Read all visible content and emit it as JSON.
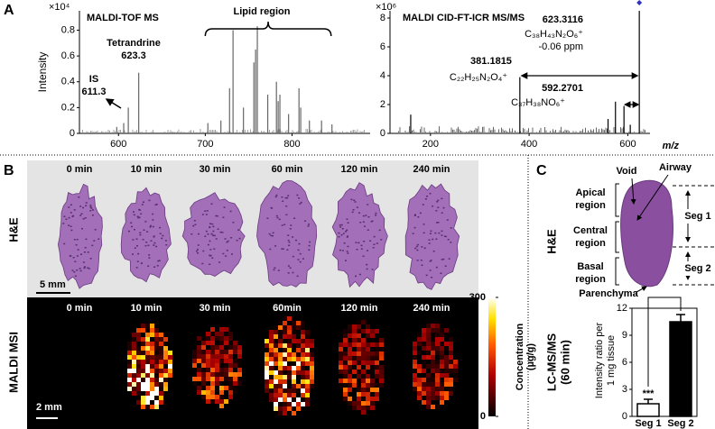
{
  "panel_a": {
    "label": "A",
    "tof": {
      "title": "MALDI-TOF MS",
      "y_label": "Intensity",
      "y_multiplier": "×10⁴",
      "xlim": [
        555,
        890
      ],
      "ylim": [
        0,
        0.95
      ],
      "xticks": [
        600,
        700,
        800
      ],
      "yticks": [
        0,
        0.2,
        0.4,
        0.6,
        0.8
      ],
      "color": "#666666",
      "peaks": {
        "x": [
          598,
          606,
          611.3,
          623.3,
          703,
          718,
          728,
          732,
          744,
          756,
          758,
          760,
          772,
          782,
          784,
          786,
          796,
          808,
          810,
          820,
          834,
          846
        ],
        "y": [
          0.05,
          0.08,
          0.2,
          0.47,
          0.08,
          0.1,
          0.35,
          0.8,
          0.2,
          0.55,
          0.65,
          0.83,
          0.3,
          0.4,
          0.25,
          0.3,
          0.15,
          0.35,
          0.2,
          0.1,
          0.1,
          0.07
        ]
      },
      "annotations": {
        "region": "Lipid region",
        "tetrandrine": "Tetrandrine",
        "tetrandrine_mz": "623.3",
        "is": "IS",
        "is_mz": "611.3"
      }
    },
    "ftms": {
      "title": "MALDI CID-FT-ICR MS/MS",
      "y_multiplier": "×10⁶",
      "x_label": "m/z",
      "xlim": [
        118,
        645
      ],
      "ylim": [
        0,
        8.5
      ],
      "xticks": [
        200,
        400,
        600
      ],
      "yticks": [
        0,
        2,
        4,
        6,
        8
      ],
      "color": "#000000",
      "peaks": {
        "x": [
          160,
          381.1815,
          560,
          575,
          592.2701,
          605,
          623.3116
        ],
        "y": [
          1.3,
          3.9,
          1.0,
          2.2,
          1.9,
          0.6,
          8.5
        ]
      },
      "annotations": {
        "precursor_mz": "623.3116",
        "precursor_formula": "C₃₈H₄₃N₂O₆⁺",
        "precursor_error": "-0.06 ppm",
        "frag1_mz": "381.1815",
        "frag1_formula": "C₂₂H₂₅N₂O₄⁺",
        "frag2_mz": "592.2701",
        "frag2_formula": "C₃₇H₃₈NO₆⁺"
      }
    }
  },
  "panel_b": {
    "label": "B",
    "he_times": [
      "0 min",
      "10 min",
      "30 min",
      "60 min",
      "120 min",
      "240 min"
    ],
    "msi_times": [
      "0 min",
      "10 min",
      "30 min",
      "60min",
      "120 min",
      "240 min"
    ],
    "he_row_label": "H&E",
    "msi_row_label": "MALDI MSI",
    "he_scale": "5 mm",
    "msi_scale": "2 mm",
    "colorbar": {
      "label": [
        "Concentration",
        "(µg/g)"
      ],
      "lim": [
        0,
        300
      ],
      "ticks": [
        0,
        300
      ]
    }
  },
  "panel_c": {
    "label": "C",
    "void": "Void",
    "airway": "Airway",
    "apical": [
      "Apical",
      "region"
    ],
    "central": [
      "Central",
      "region"
    ],
    "basal": [
      "Basal",
      "region"
    ],
    "parenchyma": "Parenchyma",
    "seg1": "Seg 1",
    "seg2": "Seg 2",
    "he_label": "H&E",
    "chart": {
      "type": "bar",
      "row_label": [
        "LC-MS/MS",
        "(60 min)"
      ],
      "y_label": [
        "Intensity ratio per",
        "1 mg tissue"
      ],
      "categories": [
        "Seg 1",
        "Seg 2"
      ],
      "values": [
        1.4,
        10.5
      ],
      "errors": [
        0.5,
        0.8
      ],
      "colors": [
        "#ffffff",
        "#000000"
      ],
      "ylim": [
        0,
        12
      ],
      "yticks": [
        0,
        3,
        6,
        9,
        12
      ],
      "significance": "***"
    }
  }
}
